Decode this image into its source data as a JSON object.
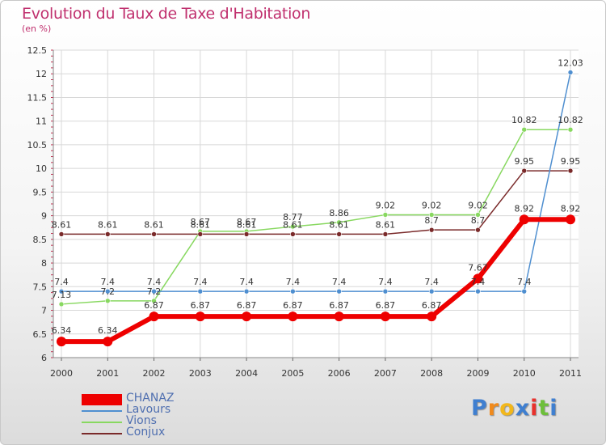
{
  "title": "Evolution du Taux de Taxe d'Habitation",
  "subtitle": "(en %)",
  "logo": {
    "letters": [
      "P",
      "r",
      "o",
      "x",
      "i",
      "t",
      "i"
    ],
    "colors": [
      "#3f7fd0",
      "#f08a1c",
      "#f2b71b",
      "#3f7fd0",
      "#e8312c",
      "#6dbf3a",
      "#3f7fd0"
    ]
  },
  "chart_data": {
    "type": "line",
    "x": [
      "2000",
      "2001",
      "2002",
      "2003",
      "2004",
      "2005",
      "2006",
      "2007",
      "2008",
      "2009",
      "2010",
      "2011"
    ],
    "ylim": [
      6,
      12.5
    ],
    "yticks": [
      "6",
      "6.5",
      "7",
      "7.5",
      "8",
      "8.5",
      "9",
      "9.5",
      "10",
      "10.5",
      "11",
      "11.5",
      "12",
      "12.5"
    ],
    "grid": true,
    "legend_position": "bottom-left",
    "series": [
      {
        "name": "CHANAZ",
        "color": "#ee0000",
        "values": [
          6.34,
          6.34,
          6.87,
          6.87,
          6.87,
          6.87,
          6.87,
          6.87,
          6.87,
          7.67,
          8.92,
          8.92
        ],
        "labels": [
          "6.34",
          "6.34",
          "6.87",
          "6.87",
          "6.87",
          "6.87",
          "6.87",
          "6.87",
          "6.87",
          "7.67",
          "8.92",
          "8.92"
        ]
      },
      {
        "name": "Lavours",
        "color": "#4f8fd0",
        "values": [
          7.4,
          7.4,
          7.4,
          7.4,
          7.4,
          7.4,
          7.4,
          7.4,
          7.4,
          7.4,
          7.4,
          12.03
        ],
        "labels": [
          "7.4",
          "7.4",
          "7.4",
          "7.4",
          "7.4",
          "7.4",
          "7.4",
          "7.4",
          "7.4",
          "7.4",
          "7.4",
          "12.03"
        ]
      },
      {
        "name": "Vions",
        "color": "#88d860",
        "values": [
          7.13,
          7.2,
          7.2,
          8.67,
          8.67,
          8.77,
          8.86,
          9.02,
          9.02,
          9.02,
          10.82,
          10.82
        ],
        "labels": [
          "7.13",
          "7.2",
          "7.2",
          "8.67",
          "8.67",
          "8.77",
          "8.86",
          "9.02",
          "9.02",
          "9.02",
          "10.82",
          "10.82"
        ]
      },
      {
        "name": "Conjux",
        "color": "#7a2a2a",
        "values": [
          8.61,
          8.61,
          8.61,
          8.61,
          8.61,
          8.61,
          8.61,
          8.61,
          8.7,
          8.7,
          9.95,
          9.95
        ],
        "labels": [
          "8.61",
          "8.61",
          "8.61",
          "8.61",
          "8.61",
          "8.61",
          "8.61",
          "8.61",
          "8.7",
          "8.7",
          "9.95",
          "9.95"
        ]
      }
    ]
  }
}
